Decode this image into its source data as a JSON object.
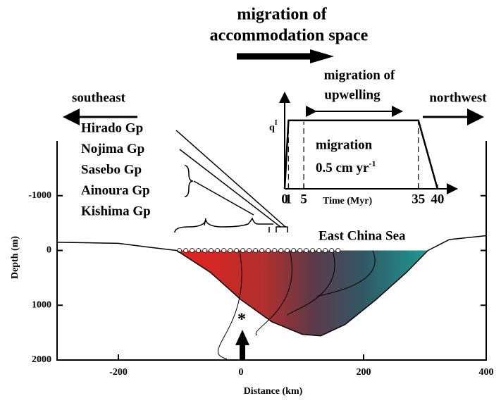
{
  "chart_data": [
    {
      "type": "line",
      "title": [
        "migration of",
        "accommodation space"
      ],
      "xlabel": "Distance (km)",
      "ylabel": "Depth (m)",
      "xlim": [
        -300,
        400
      ],
      "xticks": [
        -200,
        0,
        200,
        400
      ],
      "ylim": [
        2000,
        -2000
      ],
      "yticks": [
        2000,
        1000,
        0,
        -1000
      ],
      "direction_labels": [
        "southeast",
        "northwest"
      ],
      "groups": [
        "Hirado Gp",
        "Nojima Gp",
        "Sasebo Gp",
        "Ainoura Gp",
        "Kishima Gp"
      ],
      "annotation": "East China Sea",
      "series": [
        {
          "color": "#000000",
          "x": [
            -105,
            -50,
            0,
            50,
            100,
            130,
            170,
            220,
            270,
            305
          ],
          "values": [
            0,
            400,
            900,
            1300,
            1530,
            1560,
            1350,
            900,
            400,
            0
          ]
        },
        {
          "color": "#000000",
          "x": [
            -300,
            -200,
            -150,
            -105
          ],
          "values": [
            -150,
            -130,
            -60,
            0
          ]
        },
        {
          "color": "#000000",
          "x": [
            305,
            340,
            400
          ],
          "values": [
            0,
            -200,
            -270
          ]
        }
      ]
    },
    {
      "type": "line",
      "title": [
        "migration of",
        "upwelling"
      ],
      "ylabel": "q",
      "ylabel_superscript": "I",
      "xlabel": "Time (Myr)",
      "annotation": [
        "migration",
        "0.5 cm yr",
        "-1"
      ],
      "xlim": [
        0,
        45
      ],
      "xticks": [
        0,
        1,
        5,
        35,
        40
      ],
      "ylim": [
        0,
        1.4
      ],
      "series": [
        {
          "color": "#000000",
          "x": [
            0,
            1,
            35,
            40
          ],
          "values": [
            0,
            1,
            1,
            0
          ]
        }
      ]
    }
  ]
}
